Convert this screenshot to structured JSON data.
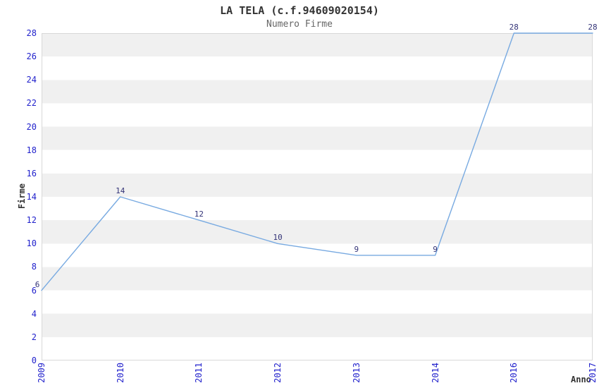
{
  "chart_data": {
    "type": "line",
    "title": "LA TELA (c.f.94609020154)",
    "subtitle": "Numero Firme",
    "xlabel": "Anno",
    "ylabel": "Firme",
    "categories": [
      "2009",
      "2010",
      "2011",
      "2012",
      "2013",
      "2014",
      "2016",
      "2017"
    ],
    "values": [
      6,
      14,
      12,
      10,
      9,
      9,
      28,
      28
    ],
    "point_labels": [
      "6",
      "14",
      "12",
      "10",
      "9",
      "9",
      "28",
      "28"
    ],
    "ylim": [
      0,
      28
    ],
    "ytick_step": 2,
    "legend": "none",
    "grid": "alternating horizontal bands every 2 units",
    "colors": {
      "line": "#78aae1",
      "tick_label": "#2222cc",
      "point_label": "#333377",
      "band": "#f0f0f0",
      "band_alt": "#ffffff",
      "border": "#d8d8d8",
      "title": "#333333",
      "subtitle": "#666666",
      "axis_label": "#333333"
    }
  }
}
